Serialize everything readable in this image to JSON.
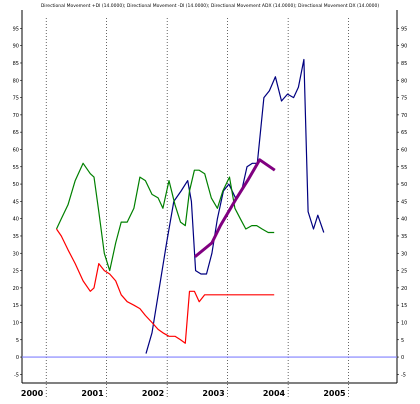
{
  "chart_data": {
    "type": "line",
    "title": "Directional Movement +DI (14.0000); Directional Movement -DI (14.0000); Directional Movement ADX (14.0000); Directional Movement DX (14.0000)",
    "xlabel": "",
    "ylabel": "",
    "x_tick_labels": [
      "2000",
      "2001",
      "2002",
      "2003",
      "2004",
      "2005"
    ],
    "x_tick_positions": [
      1999.6,
      2000.6,
      2001.6,
      2002.6,
      2003.6,
      2004.6
    ],
    "x_range": [
      1999.2,
      2005.4
    ],
    "y_tick_labels": [
      "-5",
      "0",
      "5",
      "10",
      "15",
      "20",
      "25",
      "30",
      "35",
      "40",
      "45",
      "50",
      "55",
      "60",
      "65",
      "70",
      "75",
      "80",
      "85",
      "90",
      "95"
    ],
    "ylim": [
      -7.5,
      98
    ],
    "grid": "vertical dotted",
    "series": [
      {
        "color": "#000080",
        "x": [
          2001.25,
          2001.35,
          2001.47,
          2001.59,
          2001.71,
          2001.83,
          2001.94,
          2002.0,
          2002.07,
          2002.16,
          2002.25,
          2002.34,
          2002.43,
          2002.53,
          2002.62,
          2002.73,
          2002.83,
          2002.92,
          2003.01,
          2003.09,
          2003.2,
          2003.29,
          2003.39,
          2003.49,
          2003.59,
          2003.69,
          2003.77,
          2003.86,
          2003.93,
          2004.02,
          2004.09,
          2004.19
        ],
        "values": [
          1,
          7,
          20,
          33,
          45,
          48,
          51,
          45,
          25,
          24,
          24,
          30,
          40,
          48,
          50,
          46,
          48,
          55,
          56,
          56,
          75,
          77,
          81,
          74,
          76,
          75,
          78,
          86,
          42,
          37,
          41,
          36
        ]
      },
      {
        "color": "#008000",
        "x": [
          1999.77,
          1999.85,
          1999.96,
          2000.08,
          2000.21,
          2000.33,
          2000.39,
          2000.47,
          2000.56,
          2000.65,
          2000.75,
          2000.84,
          2000.94,
          2001.05,
          2001.15,
          2001.24,
          2001.35,
          2001.45,
          2001.53,
          2001.63,
          2001.73,
          2001.82,
          2001.9,
          2001.97,
          2002.05,
          2002.13,
          2002.22,
          2002.33,
          2002.43,
          2002.52,
          2002.63,
          2002.72,
          2002.81,
          2002.9,
          2003.0,
          2003.08,
          2003.17,
          2003.27,
          2003.37
        ],
        "values": [
          37,
          40,
          44,
          51,
          56,
          53,
          52,
          42,
          30,
          25,
          33,
          39,
          39,
          43,
          52,
          51,
          47,
          46,
          43,
          51,
          44,
          39,
          38,
          48,
          54,
          54,
          53,
          46,
          43,
          48,
          52,
          43,
          40,
          37,
          38,
          38,
          37,
          36,
          36
        ]
      },
      {
        "color": "#ff0000",
        "x": [
          1999.77,
          1999.85,
          1999.96,
          2000.08,
          2000.21,
          2000.33,
          2000.39,
          2000.47,
          2000.56,
          2000.65,
          2000.75,
          2000.84,
          2000.94,
          2001.05,
          2001.15,
          2001.24,
          2001.35,
          2001.45,
          2001.53,
          2001.63,
          2001.73,
          2001.82,
          2001.9,
          2001.97,
          2002.05,
          2002.13,
          2002.22,
          2002.33,
          2002.43,
          2002.52,
          2002.63,
          2002.72,
          2002.81,
          2002.9,
          2003.0,
          2003.08,
          2003.17,
          2003.27,
          2003.37
        ],
        "values": [
          37,
          35,
          31,
          27,
          22,
          19,
          20,
          27,
          25,
          24,
          22,
          18,
          16,
          15,
          14,
          12,
          10,
          8,
          7,
          6,
          6,
          5,
          4,
          19,
          19,
          16,
          18,
          18,
          18,
          18,
          18,
          18,
          18,
          18,
          18,
          18,
          18,
          18,
          18
        ]
      },
      {
        "color": "#800080",
        "x": [
          2002.06,
          2002.34,
          2002.48,
          2002.75,
          2002.93,
          2003.13,
          2003.38
        ],
        "values": [
          29,
          33,
          38,
          46,
          51,
          57,
          54
        ]
      }
    ],
    "horizontal_line": {
      "value": 0,
      "color": "#8080ff"
    }
  }
}
